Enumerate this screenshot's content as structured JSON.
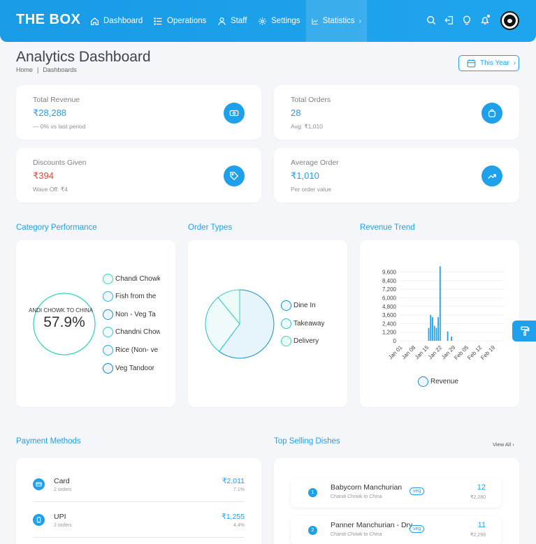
{
  "nav": {
    "brand": "THE BOX",
    "items": [
      {
        "label": "Dashboard",
        "icon": "home-icon"
      },
      {
        "label": "Operations",
        "icon": "list-icon"
      },
      {
        "label": "Staff",
        "icon": "user-icon"
      },
      {
        "label": "Settings",
        "icon": "gear-icon"
      },
      {
        "label": "Statistics",
        "icon": "chart-icon",
        "suffix": "›"
      }
    ],
    "right_icons": [
      "search-icon",
      "logout-icon",
      "lightbulb-icon",
      "bell-icon",
      "avatar"
    ]
  },
  "header": {
    "title": "Analytics Dashboard",
    "breadcrumb": [
      "Home",
      "|",
      "Dashboards"
    ],
    "range_button": "This Year",
    "range_chevron": "›"
  },
  "stats": [
    {
      "label": "Total Revenue",
      "value": "₹28,288",
      "sub": "— 0% vs last period",
      "icon": "cash-icon",
      "value_color": "#1ea0ea"
    },
    {
      "label": "Total Orders",
      "value": "28",
      "sub": "Avg: ₹1,010",
      "icon": "bag-icon",
      "value_color": "#1ea0ea"
    },
    {
      "label": "Discounts Given",
      "value": "₹394",
      "sub": "Wave Off: ₹4",
      "icon": "tag-icon",
      "value_color": "#e0463b"
    },
    {
      "label": "Average Order",
      "value": "₹1,010",
      "sub": "Per order value",
      "icon": "trend-up-icon",
      "value_color": "#1ea0ea"
    }
  ],
  "sections": {
    "category": "Category Performance",
    "order_types": "Order Types",
    "revenue_trend": "Revenue Trend",
    "payment_methods": "Payment Methods",
    "top_dishes": "Top Selling Dishes",
    "view_all": "View All ›"
  },
  "category": {
    "center_label": "ANDI CHOWK TO CHINA",
    "center_value": "57.9%",
    "legend": [
      "Chandi Chowk",
      "Fish from the",
      "Non - Veg Ta",
      "Chandni Chow",
      "Rice (Non- ve",
      "Veg Tandoor"
    ],
    "legend_colors": [
      "#3ad3b8",
      "#21b7e3",
      "#1d8fc8",
      "#2bc9c0",
      "#28a9d9",
      "#1a7fb8"
    ]
  },
  "order_types": {
    "legend": [
      "Dine In",
      "Takeaway",
      "Delivery"
    ],
    "legend_colors": [
      "#1a8fc5",
      "#2bc0c8",
      "#37d3b4"
    ]
  },
  "chart_data": {
    "type": "bar",
    "x": [
      "Jan 01",
      "Jan 08",
      "Jan 15",
      "Jan 22",
      "Jan 29",
      "Feb 05",
      "Feb 12",
      "Feb 19"
    ],
    "yticks": [
      "9,600",
      "8,400",
      "7,200",
      "6,000",
      "4,800",
      "3,600",
      "2,400",
      "1,200",
      "0"
    ],
    "ylim": [
      0,
      10400
    ],
    "series": [
      {
        "name": "Revenue",
        "color": "#1ea0ea"
      }
    ],
    "bars": [
      {
        "day": 16,
        "value": 1800
      },
      {
        "day": 17,
        "value": 3600
      },
      {
        "day": 18,
        "value": 3300
      },
      {
        "day": 19,
        "value": 2100
      },
      {
        "day": 20,
        "value": 1800
      },
      {
        "day": 21,
        "value": 3300
      },
      {
        "day": 22,
        "value": 10400
      },
      {
        "day": 26,
        "value": 1300
      },
      {
        "day": 28,
        "value": 600
      }
    ],
    "legend": "Revenue"
  },
  "payments": [
    {
      "name": "Card",
      "orders": "2 orders",
      "amount": "₹2,011",
      "pct": "7.1%",
      "icon": "card-icon"
    },
    {
      "name": "UPI",
      "orders": "2 orders",
      "amount": "₹1,255",
      "pct": "4.4%",
      "icon": "phone-icon"
    }
  ],
  "dishes": [
    {
      "rank": "1",
      "name": "Babycorn Manchurian",
      "category": "Chandi Chowk to China",
      "badge": "veg",
      "count": "12",
      "amount": "₹2,280"
    },
    {
      "rank": "2",
      "name": "Panner Manchurian - Dry",
      "category": "Chandi Chowk to China",
      "badge": "veg",
      "count": "11",
      "amount": "₹2,299"
    }
  ]
}
